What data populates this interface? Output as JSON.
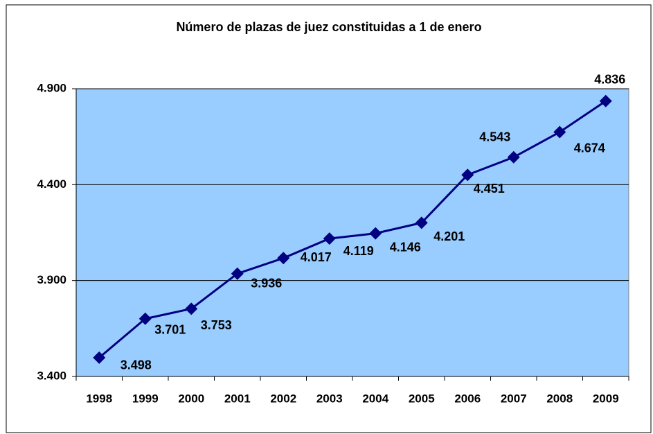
{
  "chart_data": {
    "type": "line",
    "title": "Número de plazas de juez constituidas  a 1 de enero",
    "categories": [
      "1998",
      "1999",
      "2000",
      "2001",
      "2002",
      "2003",
      "2004",
      "2005",
      "2006",
      "2007",
      "2008",
      "2009"
    ],
    "series": [
      {
        "color": "#000080",
        "values": [
          3498,
          3701,
          3753,
          3936,
          4017,
          4119,
          4146,
          4201,
          4451,
          4543,
          4674,
          4836
        ],
        "value_labels": [
          "3.498",
          "3.701",
          "3.753",
          "3.936",
          "4.017",
          "4.119",
          "4.146",
          "4.201",
          "4.451",
          "4.543",
          "4.674",
          "4.836"
        ]
      }
    ],
    "ylim": [
      3400,
      4900
    ],
    "yticks": [
      {
        "value": 3400,
        "label": "3.400"
      },
      {
        "value": 3900,
        "label": "3.900"
      },
      {
        "value": 4400,
        "label": "4.400"
      },
      {
        "value": 4900,
        "label": "4.900"
      }
    ],
    "grid": true,
    "plot_background": "#99ccff"
  }
}
